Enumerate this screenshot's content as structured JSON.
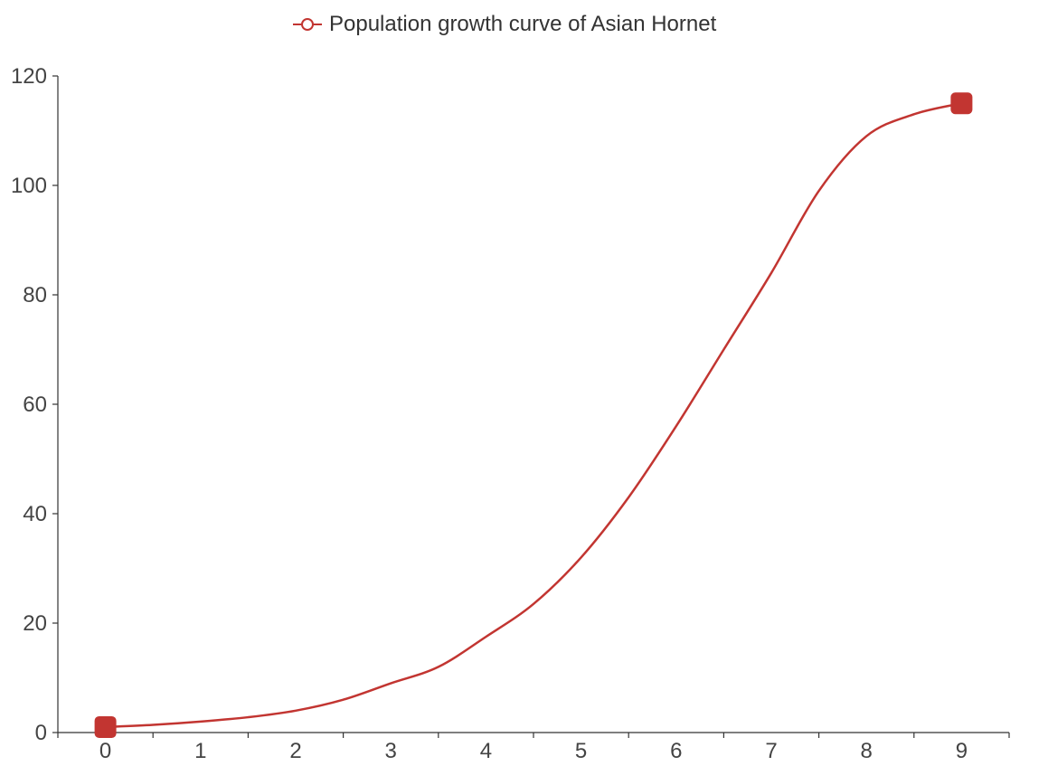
{
  "chart_data": {
    "type": "line",
    "title": "",
    "xlabel": "",
    "ylabel": "",
    "x": [
      0,
      0.5,
      1,
      1.5,
      2,
      2.5,
      3,
      3.5,
      4,
      4.5,
      5,
      5.5,
      6,
      6.5,
      7,
      7.5,
      8,
      8.5,
      9
    ],
    "series": [
      {
        "name": "Population growth curve of Asian Hornet",
        "color": "#c23531",
        "values": [
          1,
          1.4,
          2,
          2.8,
          4,
          6,
          9,
          12,
          17.5,
          23.5,
          32,
          43,
          56,
          70,
          84,
          99,
          109,
          113,
          115
        ]
      }
    ],
    "marked_points": [
      {
        "x": 0,
        "y": 1
      },
      {
        "x": 9,
        "y": 115
      }
    ],
    "xticks": [
      "0",
      "1",
      "2",
      "3",
      "4",
      "5",
      "6",
      "7",
      "8",
      "9"
    ],
    "yticks": [
      "0",
      "20",
      "40",
      "60",
      "80",
      "100",
      "120"
    ],
    "xlim": [
      -0.5,
      9.5
    ],
    "ylim": [
      0,
      120
    ],
    "grid": false,
    "legend_position": "top-center",
    "legend_marker": "empty-circle"
  }
}
